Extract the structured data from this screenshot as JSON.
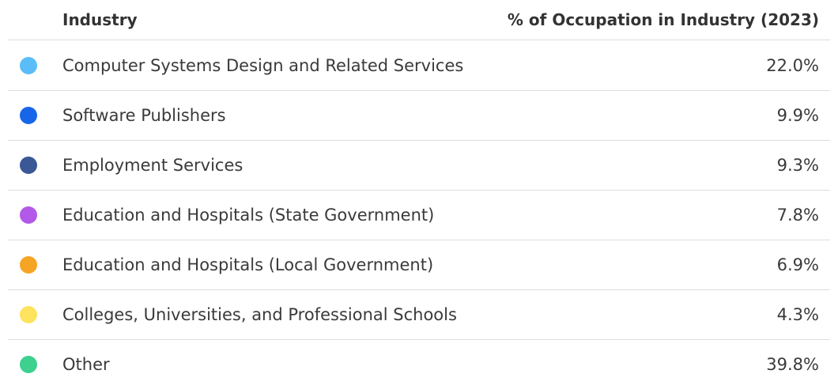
{
  "table": {
    "header": [
      "Industry",
      "% of Occupation in Industry (2023)"
    ],
    "rows": [
      {
        "name": "Computer Systems Design and Related Services",
        "value": "22.0%",
        "color": "#5bbdf8"
      },
      {
        "name": "Software Publishers",
        "value": "9.9%",
        "color": "#1766ea"
      },
      {
        "name": "Employment Services",
        "value": "9.3%",
        "color": "#3a5796"
      },
      {
        "name": "Education and Hospitals (State Government)",
        "value": "7.8%",
        "color": "#b259ea"
      },
      {
        "name": "Education and Hospitals (Local Government)",
        "value": "6.9%",
        "color": "#f5a524"
      },
      {
        "name": "Colleges, Universities, and Professional Schools",
        "value": "4.3%",
        "color": "#fde35e"
      },
      {
        "name": "Other",
        "value": "39.8%",
        "color": "#3dd08f"
      }
    ]
  }
}
